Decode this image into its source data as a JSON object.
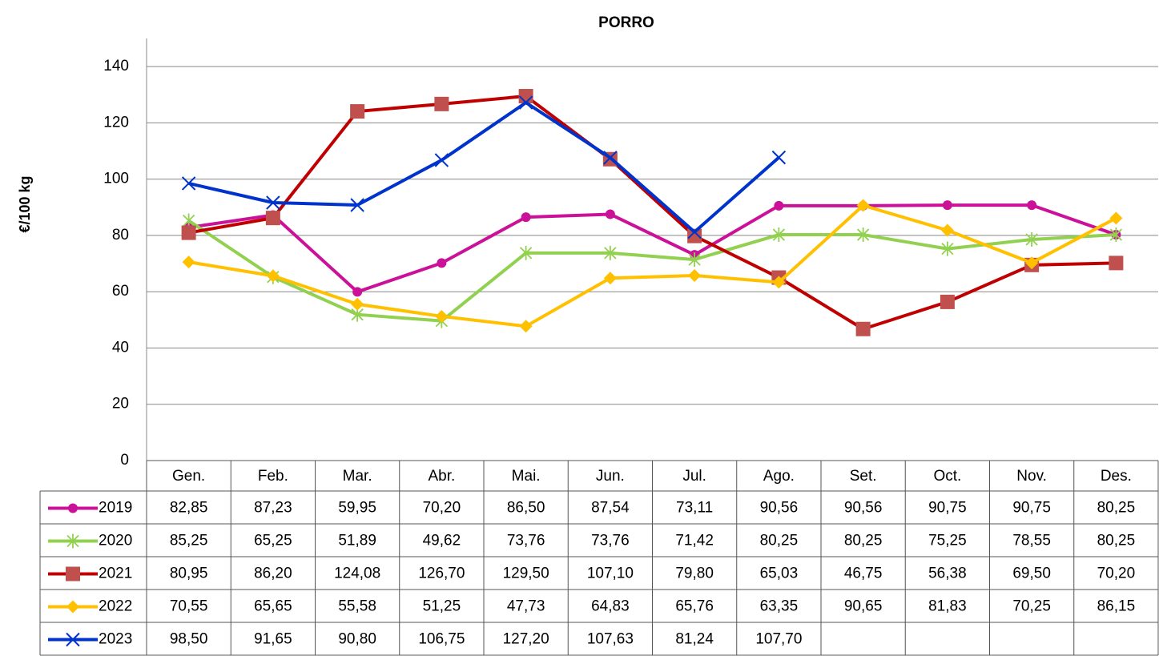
{
  "chart_data": {
    "type": "line",
    "title": "PORRO",
    "y_label": "€/100 kg",
    "categories": [
      "Gen.",
      "Feb.",
      "Mar.",
      "Abr.",
      "Mai.",
      "Jun.",
      "Jul.",
      "Ago.",
      "Set.",
      "Oct.",
      "Nov.",
      "Des."
    ],
    "ylim": [
      0,
      150
    ],
    "yticks": [
      0,
      20,
      40,
      60,
      80,
      100,
      120,
      140
    ],
    "grid": true,
    "data_table": true,
    "series": [
      {
        "name": "2019",
        "color": "#cc1199",
        "marker": "circle",
        "marker_color": "#cc1199",
        "values": [
          82.85,
          87.23,
          59.95,
          70.2,
          86.5,
          87.54,
          73.11,
          90.56,
          90.56,
          90.75,
          90.75,
          80.25
        ],
        "value_labels": [
          "82,85",
          "87,23",
          "59,95",
          "70,20",
          "86,50",
          "87,54",
          "73,11",
          "90,56",
          "90,56",
          "90,75",
          "90,75",
          "80,25"
        ]
      },
      {
        "name": "2020",
        "color": "#92d050",
        "marker": "star",
        "marker_color": "#92d050",
        "values": [
          85.25,
          65.25,
          51.89,
          49.62,
          73.76,
          73.76,
          71.42,
          80.25,
          80.25,
          75.25,
          78.55,
          80.25
        ],
        "value_labels": [
          "85,25",
          "65,25",
          "51,89",
          "49,62",
          "73,76",
          "73,76",
          "71,42",
          "80,25",
          "80,25",
          "75,25",
          "78,55",
          "80,25"
        ]
      },
      {
        "name": "2021",
        "color": "#c00000",
        "marker": "square",
        "marker_color": "#c0504d",
        "values": [
          80.95,
          86.2,
          124.08,
          126.7,
          129.5,
          107.1,
          79.8,
          65.03,
          46.75,
          56.38,
          69.5,
          70.2
        ],
        "value_labels": [
          "80,95",
          "86,20",
          "124,08",
          "126,70",
          "129,50",
          "107,10",
          "79,80",
          "65,03",
          "46,75",
          "56,38",
          "69,50",
          "70,20"
        ]
      },
      {
        "name": "2022",
        "color": "#ffc000",
        "marker": "diamond",
        "marker_color": "#ffc000",
        "values": [
          70.55,
          65.65,
          55.58,
          51.25,
          47.73,
          64.83,
          65.76,
          63.35,
          90.65,
          81.83,
          70.25,
          86.15
        ],
        "value_labels": [
          "70,55",
          "65,65",
          "55,58",
          "51,25",
          "47,73",
          "64,83",
          "65,76",
          "63,35",
          "90,65",
          "81,83",
          "70,25",
          "86,15"
        ]
      },
      {
        "name": "2023",
        "color": "#0033cc",
        "marker": "x",
        "marker_color": "#0033cc",
        "values": [
          98.5,
          91.65,
          90.8,
          106.75,
          127.2,
          107.63,
          81.24,
          107.7,
          null,
          null,
          null,
          null
        ],
        "value_labels": [
          "98,50",
          "91,65",
          "90,80",
          "106,75",
          "127,20",
          "107,63",
          "81,24",
          "107,70",
          null,
          null,
          null,
          null
        ]
      }
    ]
  }
}
